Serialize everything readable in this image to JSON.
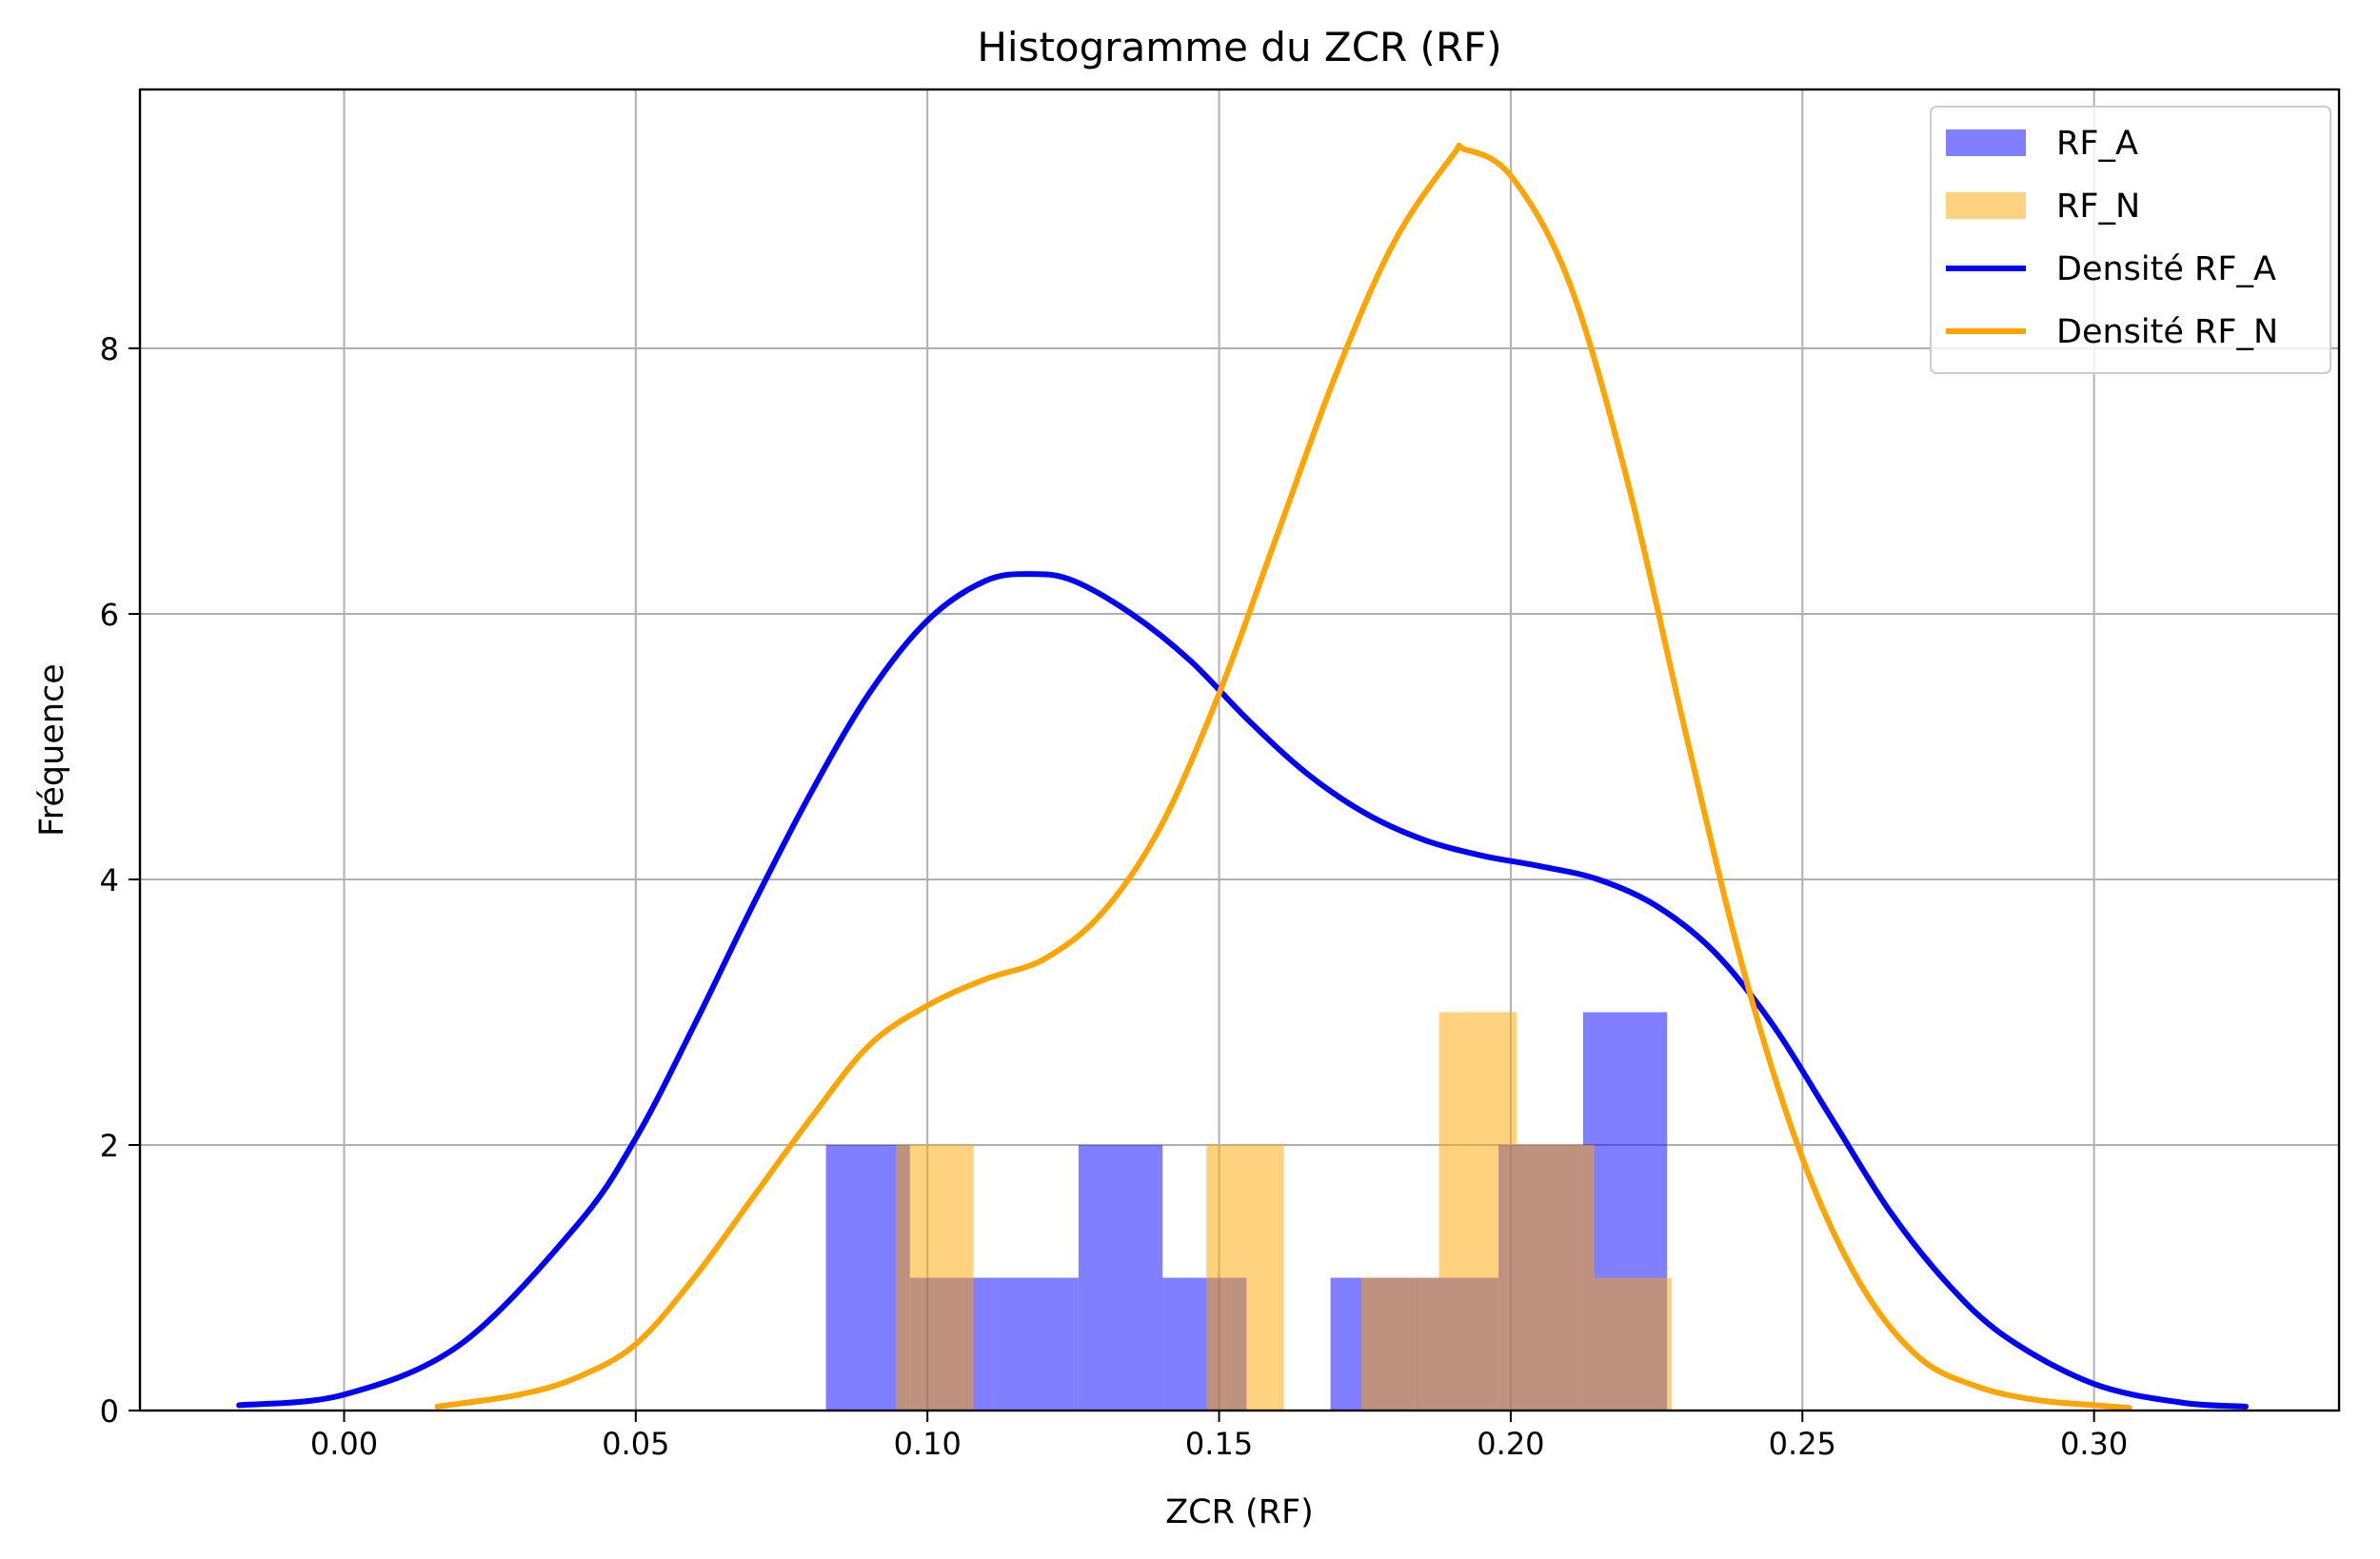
{
  "chart_data": {
    "type": "bar",
    "title": "Histogramme du ZCR (RF)",
    "xlabel": "ZCR (RF)",
    "ylabel": "Fréquence",
    "xlim": [
      -0.035,
      0.342
    ],
    "ylim": [
      0,
      9.95
    ],
    "xticks": [
      0.0,
      0.05,
      0.1,
      0.15,
      0.2,
      0.25,
      0.3
    ],
    "xtick_labels": [
      "0.00",
      "0.05",
      "0.10",
      "0.15",
      "0.20",
      "0.25",
      "0.30"
    ],
    "yticks": [
      0,
      2,
      4,
      6,
      8
    ],
    "ytick_labels": [
      "0",
      "2",
      "4",
      "6",
      "8"
    ],
    "grid": true,
    "legend_position": "top-right",
    "histograms": [
      {
        "name": "RF_A",
        "color": "#0000ff",
        "opacity": 0.5,
        "bin_edges": [
          0.0826,
          0.097,
          0.1114,
          0.1259,
          0.1403,
          0.1547,
          0.1691,
          0.1835,
          0.1979,
          0.2124,
          0.2268
        ],
        "counts": [
          2,
          1,
          1,
          2,
          1,
          0,
          1,
          1,
          2,
          3
        ]
      },
      {
        "name": "RF_N",
        "color": "#ffa500",
        "opacity": 0.5,
        "bin_edges": [
          0.0946,
          0.1079,
          0.1212,
          0.1345,
          0.1478,
          0.1611,
          0.1744,
          0.1877,
          0.201,
          0.2143,
          0.2276
        ],
        "counts": [
          2,
          0,
          0,
          0,
          2,
          0,
          1,
          3,
          2,
          1
        ]
      }
    ],
    "densities": [
      {
        "name": "Densité RF_A",
        "color": "#0000ff",
        "x": [
          -0.018,
          0.0,
          0.02,
          0.04,
          0.05,
          0.06,
          0.07,
          0.08,
          0.09,
          0.1,
          0.11,
          0.118,
          0.125,
          0.135,
          0.145,
          0.155,
          0.165,
          0.175,
          0.185,
          0.195,
          0.205,
          0.215,
          0.225,
          0.235,
          0.245,
          0.255,
          0.265,
          0.275,
          0.285,
          0.3,
          0.315,
          0.326
        ],
        "y": [
          0.04,
          0.12,
          0.5,
          1.4,
          2.05,
          2.9,
          3.8,
          4.65,
          5.4,
          5.95,
          6.25,
          6.3,
          6.25,
          6.0,
          5.65,
          5.2,
          4.8,
          4.5,
          4.3,
          4.18,
          4.1,
          4.0,
          3.8,
          3.45,
          2.9,
          2.2,
          1.5,
          0.95,
          0.55,
          0.2,
          0.06,
          0.03
        ]
      },
      {
        "name": "Densité RF_N",
        "color": "#ffa500",
        "x": [
          0.016,
          0.03,
          0.04,
          0.05,
          0.06,
          0.07,
          0.08,
          0.09,
          0.1,
          0.11,
          0.12,
          0.13,
          0.14,
          0.15,
          0.16,
          0.17,
          0.18,
          0.19,
          0.192,
          0.2,
          0.21,
          0.22,
          0.23,
          0.24,
          0.25,
          0.26,
          0.27,
          0.28,
          0.29,
          0.3,
          0.306
        ],
        "y": [
          0.03,
          0.12,
          0.25,
          0.5,
          1.0,
          1.6,
          2.2,
          2.75,
          3.05,
          3.25,
          3.4,
          3.75,
          4.4,
          5.4,
          6.6,
          7.8,
          8.8,
          9.45,
          9.5,
          9.3,
          8.5,
          7.0,
          5.1,
          3.3,
          1.9,
          0.95,
          0.4,
          0.18,
          0.08,
          0.04,
          0.02
        ]
      }
    ]
  }
}
